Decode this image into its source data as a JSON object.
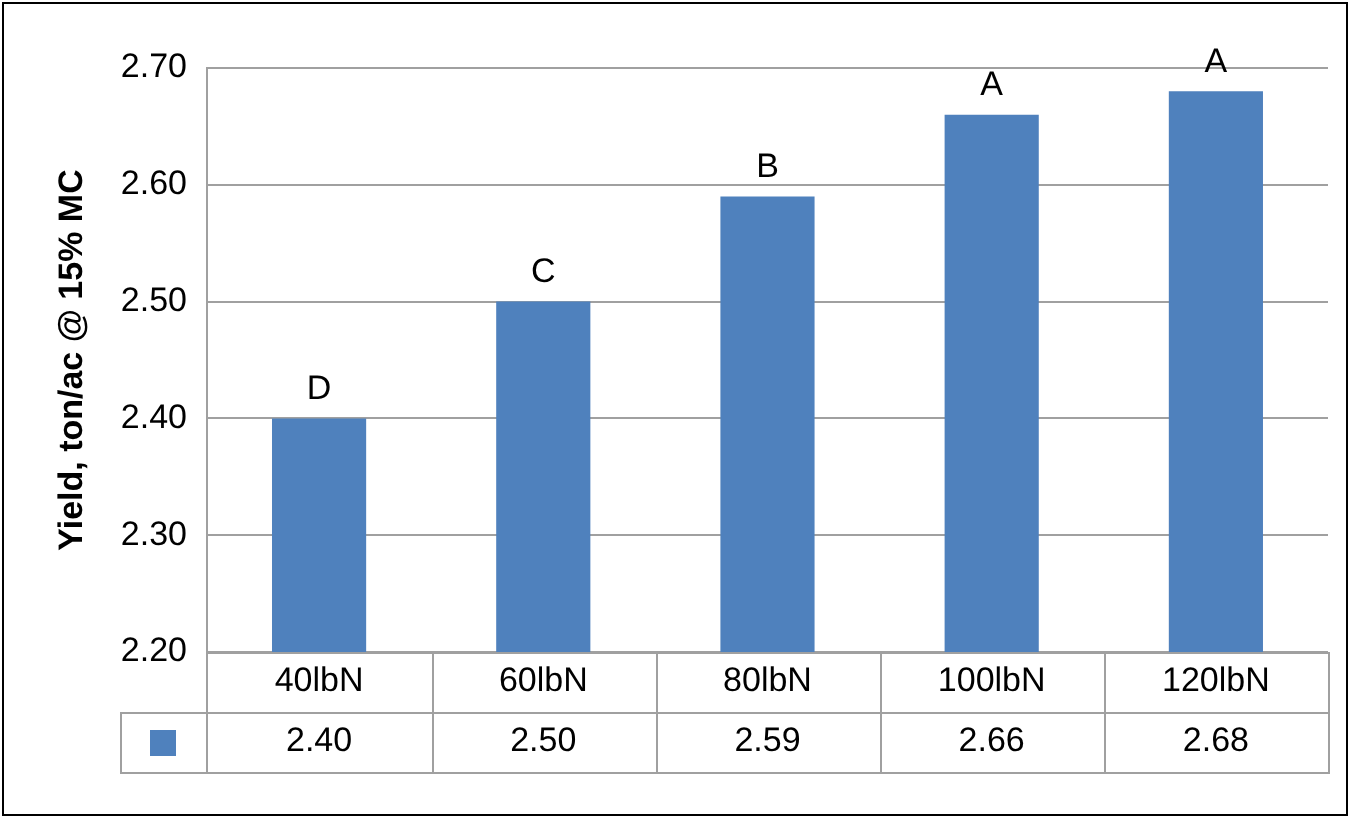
{
  "chart_data": {
    "type": "bar",
    "ylabel": "Yield, ton/ac @ 15% MC",
    "categories": [
      "40lbN",
      "60lbN",
      "80lbN",
      "100lbN",
      "120lbN"
    ],
    "values": [
      2.4,
      2.5,
      2.59,
      2.66,
      2.68
    ],
    "value_labels": [
      "2.40",
      "2.50",
      "2.59",
      "2.66",
      "2.68"
    ],
    "color": "#4f81bd",
    "ylim": [
      2.2,
      2.7
    ],
    "yticks": [
      {
        "value": 2.2,
        "label": "2.20"
      },
      {
        "value": 2.3,
        "label": "2.30"
      },
      {
        "value": 2.4,
        "label": "2.40"
      },
      {
        "value": 2.5,
        "label": "2.50"
      },
      {
        "value": 2.6,
        "label": "2.60"
      },
      {
        "value": 2.7,
        "label": "2.70"
      }
    ],
    "grid": "y",
    "legend": false,
    "annotations": [
      {
        "text": "D",
        "x": "40lbN",
        "y": 2.4
      },
      {
        "text": "C",
        "x": "60lbN",
        "y": 2.5
      },
      {
        "text": "B",
        "x": "80lbN",
        "y": 2.59
      },
      {
        "text": "A",
        "x": "100lbN",
        "y": 2.66
      },
      {
        "text": "A",
        "x": "120lbN",
        "y": 2.68
      }
    ]
  }
}
